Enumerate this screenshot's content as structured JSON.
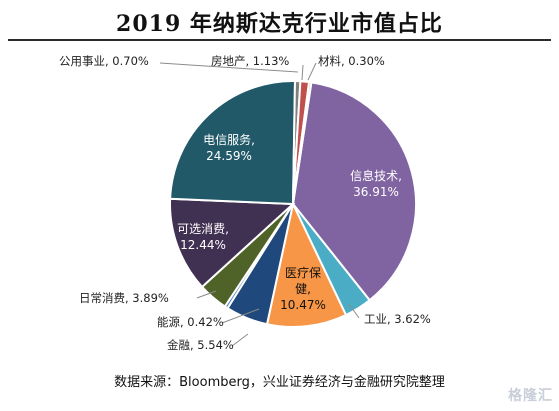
{
  "chart_data": {
    "type": "pie",
    "title": "2019 年纳斯达克行业市值占比",
    "slices": [
      {
        "label": "信息技术",
        "pct_text": "36.91%",
        "value": 36.91,
        "color": "#8064a2"
      },
      {
        "label": "工业",
        "pct_text": "3.62%",
        "value": 3.62,
        "color": "#4bacc6"
      },
      {
        "label": "医疗保健",
        "pct_text": "10.47%",
        "value": 10.47,
        "color": "#f79646"
      },
      {
        "label": "金融",
        "pct_text": "5.54%",
        "value": 5.54,
        "color": "#1f497d"
      },
      {
        "label": "能源",
        "pct_text": "0.42%",
        "value": 0.42,
        "color": "#4f81bd"
      },
      {
        "label": "日常消费",
        "pct_text": "3.89%",
        "value": 3.89,
        "color": "#4f6228"
      },
      {
        "label": "可选消费",
        "pct_text": "12.44%",
        "value": 12.44,
        "color": "#403152"
      },
      {
        "label": "电信服务",
        "pct_text": "24.59%",
        "value": 24.59,
        "color": "#215968"
      },
      {
        "label": "公用事业",
        "pct_text": "0.70%",
        "value": 0.7,
        "color": "#7f7f7f"
      },
      {
        "label": "房地产",
        "pct_text": "1.13%",
        "value": 1.13,
        "color": "#c0504d"
      },
      {
        "label": "材料",
        "pct_text": "0.30%",
        "value": 0.3,
        "color": "#9bbb59"
      }
    ]
  },
  "source": "数据来源：Bloomberg，兴业证券经济与金融研究院整理",
  "watermark": "格隆汇"
}
